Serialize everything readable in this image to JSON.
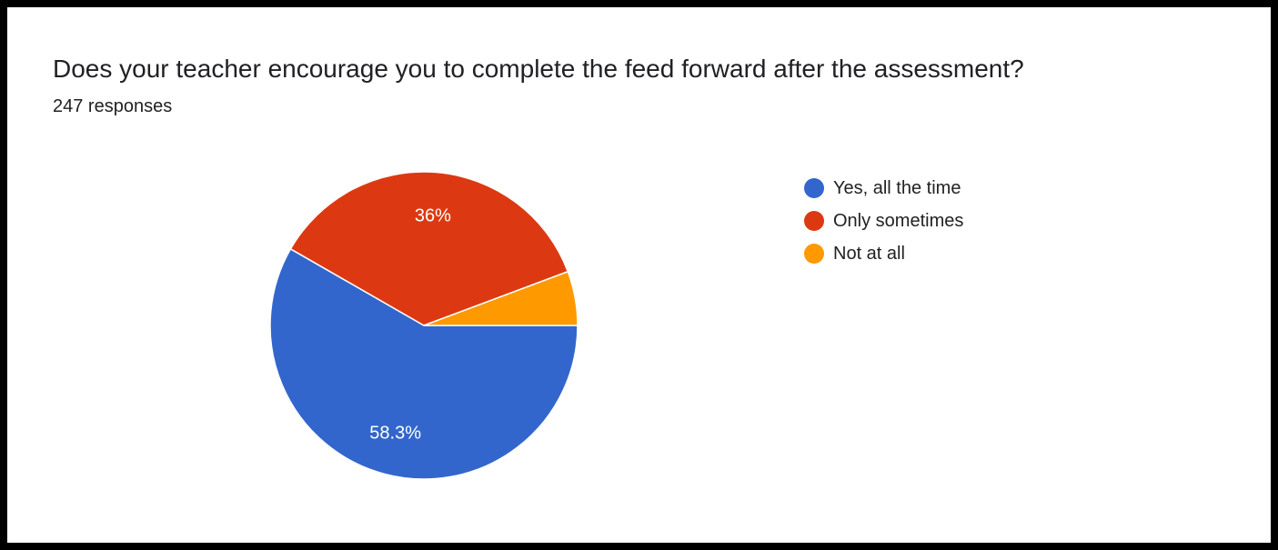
{
  "header": {
    "title": "Does your teacher encourage you to complete the feed forward after the assessment?",
    "subtitle": "247 responses"
  },
  "chart_data": {
    "type": "pie",
    "title": "Does your teacher encourage you to complete the feed forward after the assessment?",
    "subtitle": "247 responses",
    "legend_position": "right",
    "slices": [
      {
        "label": "Yes, all the time",
        "value": 58.3,
        "display": "58.3%",
        "color": "#3366cc"
      },
      {
        "label": "Only sometimes",
        "value": 36,
        "display": "36%",
        "color": "#dc3912"
      },
      {
        "label": "Not at all",
        "value": 5.7,
        "display": "",
        "color": "#ff9900"
      }
    ]
  }
}
